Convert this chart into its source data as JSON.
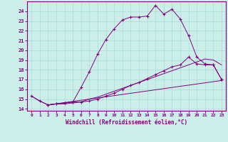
{
  "xlabel": "Windchill (Refroidissement éolien,°C)",
  "bg_color": "#cceee8",
  "line_color": "#800080",
  "xlim": [
    -0.5,
    23.5
  ],
  "ylim": [
    13.8,
    25.0
  ],
  "yticks": [
    14,
    15,
    16,
    17,
    18,
    19,
    20,
    21,
    22,
    23,
    24
  ],
  "xticks": [
    0,
    1,
    2,
    3,
    4,
    5,
    6,
    7,
    8,
    9,
    10,
    11,
    12,
    13,
    14,
    15,
    16,
    17,
    18,
    19,
    20,
    21,
    22,
    23
  ],
  "line1_x": [
    0,
    1,
    2,
    3,
    4,
    5,
    6,
    7,
    8,
    9,
    10,
    11,
    12,
    13,
    14,
    15,
    16,
    17,
    18,
    19,
    20,
    21,
    22,
    23
  ],
  "line1_y": [
    15.3,
    14.8,
    14.4,
    14.5,
    14.6,
    14.7,
    16.2,
    17.8,
    19.6,
    21.1,
    22.2,
    23.1,
    23.4,
    23.4,
    23.5,
    24.6,
    23.7,
    24.2,
    23.2,
    21.5,
    19.3,
    18.6,
    18.5,
    17.0
  ],
  "line2_x": [
    2,
    3,
    4,
    5,
    6,
    7,
    8,
    9,
    10,
    11,
    12,
    13,
    14,
    15,
    16,
    17,
    18,
    19,
    20,
    21,
    22,
    23
  ],
  "line2_y": [
    14.4,
    14.5,
    14.6,
    14.7,
    14.7,
    14.8,
    15.0,
    15.3,
    15.6,
    16.0,
    16.4,
    16.7,
    17.1,
    17.5,
    17.9,
    18.3,
    18.5,
    19.3,
    18.6,
    18.5,
    18.5,
    17.0
  ],
  "line3_x": [
    2,
    23
  ],
  "line3_y": [
    14.4,
    16.9
  ],
  "line4_x": [
    0,
    1,
    2,
    3,
    4,
    5,
    6,
    7,
    8,
    9,
    10,
    11,
    12,
    13,
    14,
    15,
    16,
    17,
    18,
    19,
    20,
    21,
    22,
    23
  ],
  "line4_y": [
    15.3,
    14.8,
    14.4,
    14.5,
    14.5,
    14.6,
    14.7,
    15.0,
    15.2,
    15.5,
    15.8,
    16.1,
    16.4,
    16.7,
    17.0,
    17.3,
    17.6,
    17.9,
    18.2,
    18.5,
    18.8,
    19.1,
    19.0,
    18.5
  ]
}
